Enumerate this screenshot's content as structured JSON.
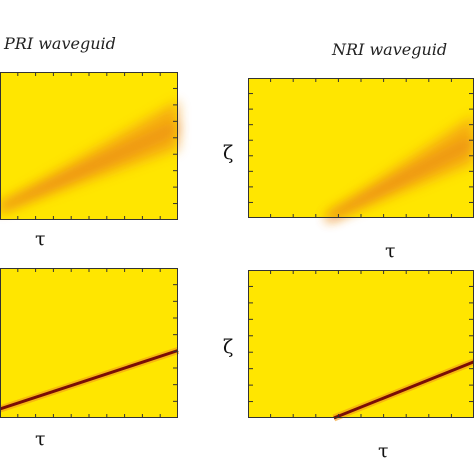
{
  "colors": {
    "background": "#ffe600",
    "beam_soft": "#f29a18",
    "beam_sharp": "#7a0e05",
    "frame": "#333333"
  },
  "columns": [
    {
      "title": "PRI waveguid"
    },
    {
      "title": "NRI waveguid"
    }
  ],
  "chart_data": [
    {
      "type": "heatmap",
      "column": "PRI waveguid",
      "row": 1,
      "xlabel": "τ",
      "ylabel": "",
      "beam": {
        "start": [
          0.0,
          0.08
        ],
        "end": [
          1.0,
          0.63
        ],
        "sharpness": "diffuse"
      }
    },
    {
      "type": "heatmap",
      "column": "NRI waveguid",
      "row": 1,
      "xlabel": "τ",
      "ylabel": "ζ",
      "beam": {
        "start": [
          0.35,
          0.0
        ],
        "end": [
          1.0,
          0.55
        ],
        "sharpness": "diffuse"
      }
    },
    {
      "type": "heatmap",
      "column": "PRI waveguid",
      "row": 2,
      "xlabel": "τ",
      "ylabel": "",
      "beam": {
        "start": [
          0.0,
          0.06
        ],
        "end": [
          1.0,
          0.45
        ],
        "sharpness": "sharp"
      }
    },
    {
      "type": "heatmap",
      "column": "NRI waveguid",
      "row": 2,
      "xlabel": "τ",
      "ylabel": "ζ",
      "beam": {
        "start": [
          0.38,
          0.0
        ],
        "end": [
          1.0,
          0.38
        ],
        "sharpness": "sharp"
      }
    }
  ]
}
